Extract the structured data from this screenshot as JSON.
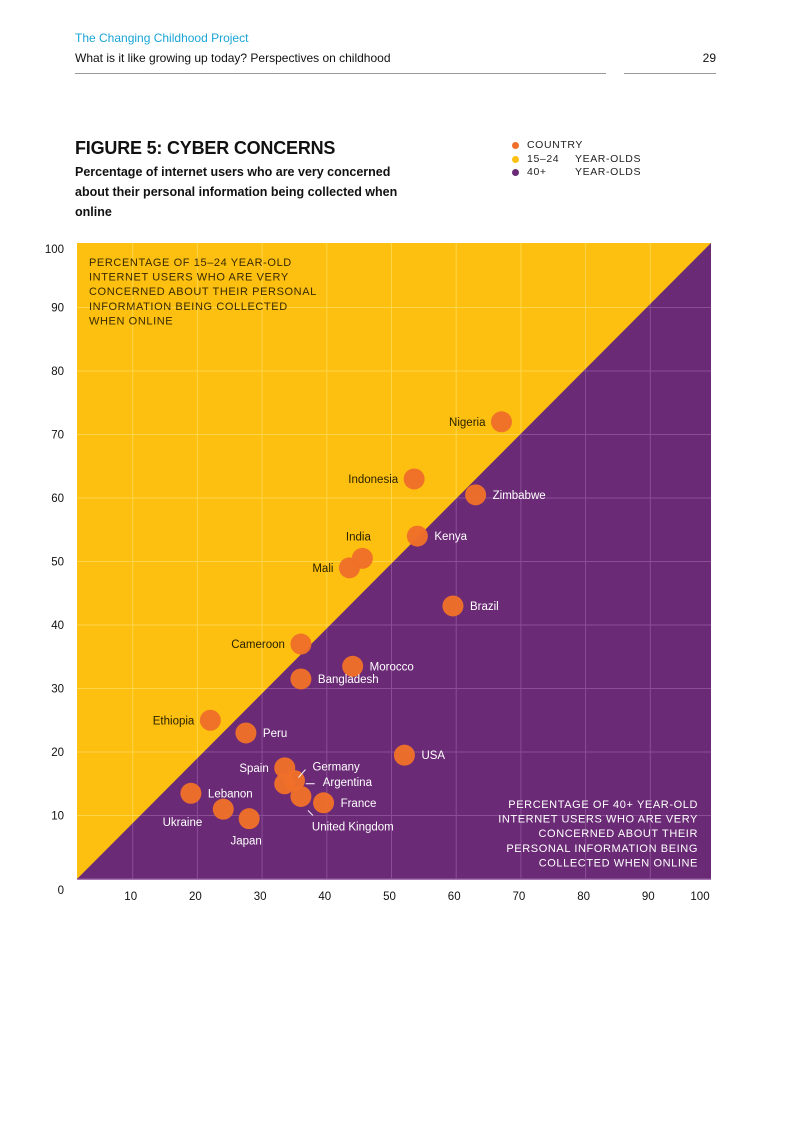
{
  "header": {
    "project": "The Changing Childhood Project",
    "subtitle": "What is it like growing up today? Perspectives on childhood",
    "page_number": "29"
  },
  "figure": {
    "title": "FIGURE 5: CYBER CONCERNS",
    "subtitle": "Percentage of internet users who are very concerned about their personal information being collected when online"
  },
  "legend": {
    "items": [
      {
        "marker": "",
        "label": "COUNTRY",
        "color": "#f07029"
      },
      {
        "marker": "15–24",
        "label": "YEAR-OLDS",
        "color": "#fdc010"
      },
      {
        "marker": "40+",
        "label": "YEAR-OLDS",
        "color": "#6a2a75"
      }
    ]
  },
  "colors": {
    "upper_zone": "#fdc010",
    "lower_zone": "#6a2a75",
    "point": "#f07029",
    "grid_upper": "#ffd54a",
    "grid_lower": "#8a4d96"
  },
  "chart_data": {
    "type": "scatter",
    "title": "FIGURE 5: CYBER CONCERNS",
    "xlabel": "Percentage of 40+ year-old internet users who are very concerned about their personal information being collected when online",
    "ylabel": "Percentage of 15–24 year-old internet users who are very concerned about their personal information being collected when online",
    "xlim": [
      0,
      100
    ],
    "ylim": [
      0,
      100
    ],
    "x_ticks": [
      "10",
      "20",
      "30",
      "40",
      "50",
      "60",
      "70",
      "80",
      "90",
      "100"
    ],
    "y_ticks": [
      "0",
      "10",
      "20",
      "30",
      "40",
      "50",
      "60",
      "70",
      "80",
      "90",
      "100"
    ],
    "grid": true,
    "legend_position": "top-right",
    "zone_labels": {
      "upper_left": [
        "PERCENTAGE OF 15–24 YEAR-OLD",
        "INTERNET USERS WHO ARE VERY",
        "CONCERNED ABOUT THEIR PERSONAL",
        "INFORMATION BEING COLLECTED",
        "WHEN ONLINE"
      ],
      "lower_right": [
        "PERCENTAGE OF 40+ YEAR-OLD",
        "INTERNET USERS WHO ARE VERY",
        "CONCERNED ABOUT THEIR",
        "PERSONAL INFORMATION BEING",
        "COLLECTED WHEN ONLINE"
      ]
    },
    "points": [
      {
        "country": "Nigeria",
        "x": 67,
        "y": 72,
        "label_pos": "left"
      },
      {
        "country": "Indonesia",
        "x": 53.5,
        "y": 63,
        "label_pos": "left"
      },
      {
        "country": "Zimbabwe",
        "x": 63,
        "y": 60.5,
        "label_pos": "right"
      },
      {
        "country": "Kenya",
        "x": 54,
        "y": 54,
        "label_pos": "right"
      },
      {
        "country": "India",
        "x": 45.5,
        "y": 50.5,
        "label_pos": "above"
      },
      {
        "country": "Mali",
        "x": 43.5,
        "y": 49,
        "label_pos": "left"
      },
      {
        "country": "Brazil",
        "x": 59.5,
        "y": 43,
        "label_pos": "right"
      },
      {
        "country": "Cameroon",
        "x": 36,
        "y": 37,
        "label_pos": "left"
      },
      {
        "country": "Morocco",
        "x": 44,
        "y": 33.5,
        "label_pos": "right"
      },
      {
        "country": "Bangladesh",
        "x": 36,
        "y": 31.5,
        "label_pos": "right"
      },
      {
        "country": "Ethiopia",
        "x": 22,
        "y": 25,
        "label_pos": "left"
      },
      {
        "country": "Peru",
        "x": 27.5,
        "y": 23,
        "label_pos": "right"
      },
      {
        "country": "USA",
        "x": 52,
        "y": 19.5,
        "label_pos": "right"
      },
      {
        "country": "Spain",
        "x": 33.5,
        "y": 17.5,
        "label_pos": "left"
      },
      {
        "country": "Germany",
        "x": 35,
        "y": 15.5,
        "label_pos": "right-leader-up"
      },
      {
        "country": "Argentina",
        "x": 33.5,
        "y": 15,
        "label_pos": "right-leader"
      },
      {
        "country": "United Kingdom",
        "x": 36,
        "y": 13,
        "label_pos": "below-leader"
      },
      {
        "country": "France",
        "x": 39.5,
        "y": 12,
        "label_pos": "right"
      },
      {
        "country": "Lebanon",
        "x": 19,
        "y": 13.5,
        "label_pos": "right"
      },
      {
        "country": "Ukraine",
        "x": 24,
        "y": 11,
        "label_pos": "below-left"
      },
      {
        "country": "Japan",
        "x": 28,
        "y": 9.5,
        "label_pos": "below"
      }
    ]
  }
}
